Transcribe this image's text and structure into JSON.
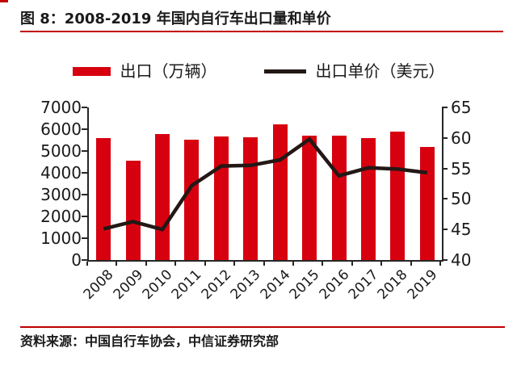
{
  "header": {
    "title": "图 8：2008-2019 年国内自行车出口量和单价",
    "rule_color": "#c00000"
  },
  "legend": {
    "items": [
      {
        "label": "出口（万辆）",
        "type": "bar",
        "color": "#d7000f"
      },
      {
        "label": "出口单价（美元）",
        "type": "line",
        "color": "#231815"
      }
    ]
  },
  "chart_data": {
    "type": "bar",
    "title": "2008-2019 年国内自行车出口量和单价",
    "categories": [
      "2008",
      "2009",
      "2010",
      "2011",
      "2012",
      "2013",
      "2014",
      "2015",
      "2016",
      "2017",
      "2018",
      "2019"
    ],
    "series": [
      {
        "name": "出口（万辆）",
        "type": "bar",
        "axis": "left",
        "color": "#d7000f",
        "values": [
          5600,
          4560,
          5770,
          5510,
          5660,
          5630,
          6210,
          5720,
          5690,
          5590,
          5880,
          5200
        ]
      },
      {
        "name": "出口单价（美元）",
        "type": "line",
        "axis": "right",
        "color": "#231815",
        "values": [
          45.1,
          46.3,
          45.0,
          52.2,
          55.4,
          55.5,
          56.4,
          59.8,
          53.8,
          55.1,
          54.9,
          54.3
        ]
      }
    ],
    "left_axis": {
      "min": 0,
      "max": 7000,
      "ticks": [
        0,
        1000,
        2000,
        3000,
        4000,
        5000,
        6000,
        7000
      ]
    },
    "right_axis": {
      "min": 40,
      "max": 65,
      "ticks": [
        40,
        45,
        50,
        55,
        60,
        65
      ]
    },
    "grid": false,
    "legend_position": "top"
  },
  "footer": {
    "source": "资料来源：中国自行车协会，中信证券研究部",
    "rule_color": "#c00000"
  },
  "page": {
    "corner_mark_color": "#c00000",
    "axis_color": "#262626"
  }
}
